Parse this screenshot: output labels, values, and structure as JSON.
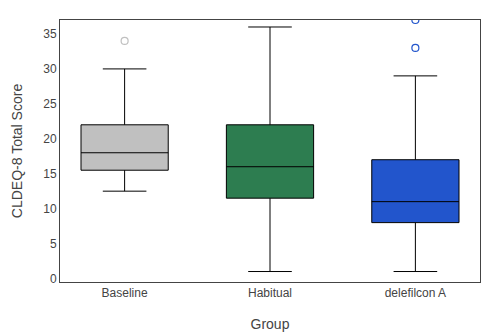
{
  "chart_data": {
    "type": "box",
    "categories": [
      "Baseline",
      "Habitual",
      "delefilcon A"
    ],
    "colors": [
      "#c0c0c0",
      "#2d7d50",
      "#2255cc"
    ],
    "boxes": [
      {
        "q1": 15.5,
        "median": 18.0,
        "q3": 22.0,
        "whislo": 12.5,
        "whishi": 30.0,
        "fliers": [
          34.0
        ]
      },
      {
        "q1": 11.5,
        "median": 16.0,
        "q3": 22.0,
        "whislo": 1.0,
        "whishi": 36.0,
        "fliers": []
      },
      {
        "q1": 8.0,
        "median": 11.0,
        "q3": 17.0,
        "whislo": 1.0,
        "whishi": 29.0,
        "fliers": [
          33.0,
          37.0
        ]
      }
    ],
    "marker": "circle-open",
    "xlabel": "Group",
    "ylabel": "CLDEQ-8 Total Score",
    "ylim": [
      -0.5,
      37
    ],
    "yticks": [
      0,
      5,
      10,
      15,
      20,
      25,
      30,
      35
    ],
    "grid": false
  }
}
